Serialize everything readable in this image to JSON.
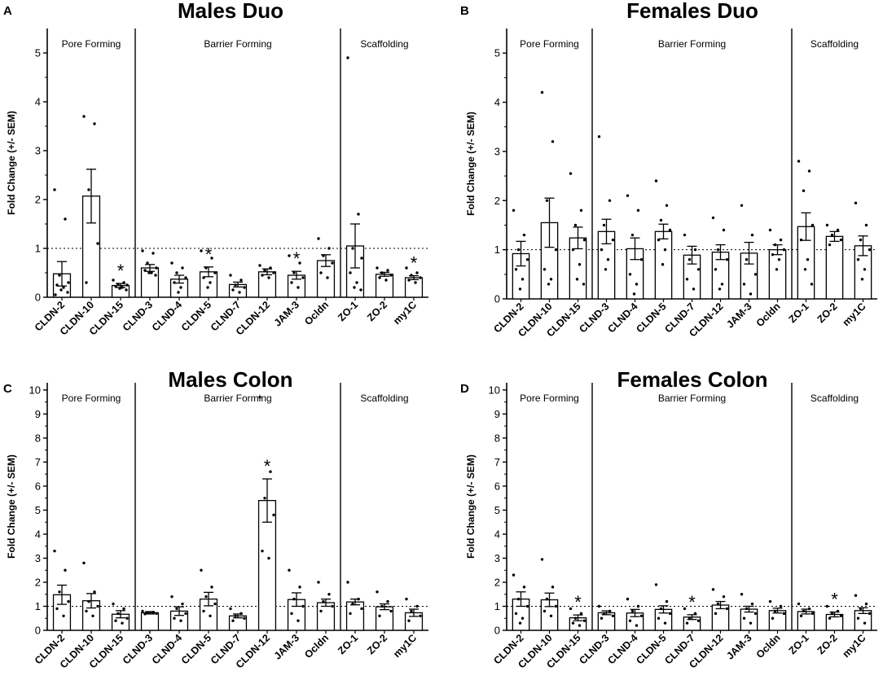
{
  "figure": {
    "ylabel": "Fold Change (+/- SEM)",
    "groups": [
      "Pore Forming",
      "Barrier Forming",
      "Scaffolding"
    ]
  },
  "chart_data": [
    {
      "type": "bar",
      "panel": "A",
      "title": "Males Duo",
      "xlabel": "",
      "ylabel": "Fold Change (+/- SEM)",
      "ylim": [
        0,
        5.5
      ],
      "yticks": [
        "0",
        "1",
        "2",
        "3",
        "4",
        "5"
      ],
      "reference_line": 1,
      "categories": [
        "CLDN-2",
        "CLDN-10",
        "CLDN-15",
        "CLND-3",
        "CLND-4",
        "CLDN-5",
        "CLND-7",
        "CLDN-12",
        "JAM-3",
        "Ocldn",
        "ZO-1",
        "ZO-2",
        "my1C"
      ],
      "values": [
        0.48,
        2.07,
        0.24,
        0.6,
        0.37,
        0.52,
        0.26,
        0.52,
        0.45,
        0.75,
        1.05,
        0.47,
        0.4
      ],
      "sem": [
        0.25,
        0.55,
        0.04,
        0.07,
        0.08,
        0.1,
        0.05,
        0.06,
        0.08,
        0.12,
        0.45,
        0.04,
        0.04
      ],
      "significant": [
        false,
        false,
        true,
        false,
        false,
        true,
        false,
        false,
        true,
        false,
        false,
        false,
        true
      ],
      "points": [
        [
          2.2,
          1.6,
          0.45,
          0.3,
          0.25,
          0.2,
          0.15,
          0.1,
          0.05
        ],
        [
          3.7,
          3.55,
          2.2,
          1.1,
          0.3
        ],
        [
          0.35,
          0.3,
          0.27,
          0.25,
          0.22,
          0.2,
          0.18,
          0.15
        ],
        [
          0.95,
          0.9,
          0.7,
          0.6,
          0.55,
          0.5,
          0.5,
          0.45
        ],
        [
          0.7,
          0.6,
          0.5,
          0.4,
          0.3,
          0.2,
          0.1
        ],
        [
          0.95,
          0.8,
          0.6,
          0.5,
          0.4,
          0.3,
          0.2
        ],
        [
          0.45,
          0.35,
          0.25,
          0.2,
          0.15,
          0.1
        ],
        [
          0.65,
          0.6,
          0.55,
          0.5,
          0.45,
          0.4
        ],
        [
          0.85,
          0.7,
          0.5,
          0.4,
          0.3,
          0.2
        ],
        [
          1.2,
          1.0,
          0.85,
          0.7,
          0.5,
          0.4
        ],
        [
          4.9,
          1.7,
          1.0,
          0.8,
          0.5,
          0.3,
          0.2,
          0.15
        ],
        [
          0.6,
          0.55,
          0.5,
          0.45,
          0.4,
          0.35
        ],
        [
          0.6,
          0.5,
          0.45,
          0.4,
          0.35,
          0.3
        ]
      ]
    },
    {
      "type": "bar",
      "panel": "B",
      "title": "Females Duo",
      "xlabel": "",
      "ylabel": "Fold Change (+/- SEM)",
      "ylim": [
        0,
        5.5
      ],
      "yticks": [
        "0",
        "1",
        "2",
        "3",
        "4",
        "5"
      ],
      "reference_line": 1,
      "categories": [
        "CLDN-2",
        "CLDN-10",
        "CLDN-15",
        "CLND-3",
        "CLND-4",
        "CLDN-5",
        "CLND-7",
        "CLDN-12",
        "JAM-3",
        "Ocldn",
        "ZO-1",
        "ZO-2",
        "my1C"
      ],
      "values": [
        0.92,
        1.55,
        1.24,
        1.37,
        1.02,
        1.37,
        0.89,
        0.95,
        0.93,
        1.0,
        1.47,
        1.27,
        1.08
      ],
      "sem": [
        0.25,
        0.5,
        0.22,
        0.25,
        0.22,
        0.15,
        0.18,
        0.15,
        0.22,
        0.1,
        0.28,
        0.1,
        0.2
      ],
      "significant": [
        false,
        false,
        false,
        false,
        false,
        false,
        false,
        false,
        false,
        false,
        false,
        false,
        false
      ],
      "points": [
        [
          1.8,
          1.3,
          1.0,
          0.8,
          0.6,
          0.4,
          0.2
        ],
        [
          4.2,
          3.2,
          2.0,
          1.0,
          0.6,
          0.4,
          0.3
        ],
        [
          2.55,
          1.8,
          1.5,
          1.2,
          1.0,
          0.7,
          0.4,
          0.3
        ],
        [
          3.3,
          2.0,
          1.5,
          1.2,
          1.0,
          0.8,
          0.6
        ],
        [
          2.1,
          1.8,
          1.3,
          0.8,
          0.5,
          0.3,
          0.1
        ],
        [
          2.4,
          1.9,
          1.6,
          1.4,
          1.2,
          1.0,
          0.7
        ],
        [
          1.3,
          1.0,
          0.8,
          0.6,
          0.4,
          0.2
        ],
        [
          1.65,
          1.4,
          1.0,
          0.8,
          0.6,
          0.3,
          0.2
        ],
        [
          1.9,
          1.3,
          0.8,
          0.5,
          0.3,
          0.1
        ],
        [
          1.4,
          1.2,
          1.1,
          1.0,
          0.9,
          0.8,
          0.6
        ],
        [
          2.8,
          2.6,
          2.2,
          1.5,
          1.2,
          0.8,
          0.6,
          0.3
        ],
        [
          1.5,
          1.4,
          1.3,
          1.2,
          1.1
        ],
        [
          1.95,
          1.5,
          1.2,
          1.0,
          0.8,
          0.6,
          0.4
        ]
      ]
    },
    {
      "type": "bar",
      "panel": "C",
      "title": "Males Colon",
      "xlabel": "",
      "ylabel": "Fold Change (+/- SEM)",
      "ylim": [
        0,
        10.3
      ],
      "yticks": [
        "0",
        "1",
        "2",
        "3",
        "4",
        "5",
        "6",
        "7",
        "8",
        "9",
        "10"
      ],
      "reference_line": 1,
      "categories": [
        "CLDN-2",
        "CLDN-10",
        "CLDN-15",
        "CLND-3",
        "CLND-4",
        "CLDN-5",
        "CLND-7",
        "CLDN-12",
        "JAM-3",
        "Ocldn",
        "ZO-1",
        "ZO-2",
        "my1C"
      ],
      "values": [
        1.48,
        1.23,
        0.67,
        0.73,
        0.8,
        1.3,
        0.6,
        5.4,
        1.28,
        1.15,
        1.18,
        0.98,
        0.73
      ],
      "sem": [
        0.4,
        0.3,
        0.15,
        0.05,
        0.18,
        0.28,
        0.08,
        0.9,
        0.28,
        0.15,
        0.12,
        0.12,
        0.15
      ],
      "significant": [
        false,
        false,
        false,
        false,
        false,
        false,
        false,
        true,
        false,
        false,
        false,
        false,
        false
      ],
      "points": [
        [
          3.3,
          2.5,
          1.6,
          1.2,
          0.9,
          0.6
        ],
        [
          2.8,
          1.6,
          1.2,
          1.0,
          0.8,
          0.6
        ],
        [
          1.1,
          0.9,
          0.7,
          0.5,
          0.4,
          0.3
        ],
        [
          0.8,
          0.75,
          0.72,
          0.7,
          0.68
        ],
        [
          1.4,
          1.1,
          0.9,
          0.7,
          0.5,
          0.4
        ],
        [
          2.5,
          1.8,
          1.4,
          1.1,
          0.8,
          0.6
        ],
        [
          0.9,
          0.7,
          0.6,
          0.5,
          0.4
        ],
        [
          9.7,
          6.6,
          5.5,
          4.8,
          3.3,
          3.0
        ],
        [
          2.5,
          1.8,
          1.3,
          1.0,
          0.7,
          0.4
        ],
        [
          2.0,
          1.5,
          1.2,
          1.0,
          0.8
        ],
        [
          2.0,
          1.3,
          1.1,
          0.9,
          0.7
        ],
        [
          1.6,
          1.2,
          1.0,
          0.8,
          0.6
        ],
        [
          1.3,
          1.0,
          0.8,
          0.6,
          0.4
        ]
      ]
    },
    {
      "type": "bar",
      "panel": "D",
      "title": "Females Colon",
      "xlabel": "",
      "ylabel": "Fold Change (+/- SEM)",
      "ylim": [
        0,
        10.3
      ],
      "yticks": [
        "0",
        "1",
        "2",
        "3",
        "4",
        "5",
        "6",
        "7",
        "8",
        "9",
        "10"
      ],
      "reference_line": 1,
      "categories": [
        "CLDN-2",
        "CLDN-10",
        "CLDN-15",
        "CLND-3",
        "CLND-4",
        "CLDN-5",
        "CLND-7",
        "CLDN-12",
        "JAM-3",
        "Ocldn",
        "ZO-1",
        "ZO-2",
        "my1C"
      ],
      "values": [
        1.3,
        1.27,
        0.52,
        0.73,
        0.72,
        0.87,
        0.55,
        1.05,
        0.88,
        0.82,
        0.78,
        0.66,
        0.82
      ],
      "sem": [
        0.3,
        0.28,
        0.12,
        0.08,
        0.15,
        0.15,
        0.1,
        0.15,
        0.12,
        0.1,
        0.1,
        0.1,
        0.12
      ],
      "significant": [
        false,
        false,
        true,
        false,
        false,
        false,
        true,
        false,
        false,
        false,
        false,
        true,
        false
      ],
      "points": [
        [
          2.3,
          1.8,
          1.3,
          1.0,
          0.7,
          0.5,
          0.3
        ],
        [
          2.95,
          1.8,
          1.3,
          1.0,
          0.8,
          0.6
        ],
        [
          0.9,
          0.7,
          0.5,
          0.4,
          0.3,
          0.2
        ],
        [
          1.0,
          0.8,
          0.7,
          0.6,
          0.5
        ],
        [
          1.3,
          1.0,
          0.8,
          0.6,
          0.4,
          0.2
        ],
        [
          1.9,
          1.2,
          0.9,
          0.7,
          0.5,
          0.3
        ],
        [
          0.9,
          0.7,
          0.5,
          0.4,
          0.3
        ],
        [
          1.7,
          1.4,
          1.1,
          0.9,
          0.7
        ],
        [
          1.5,
          1.1,
          0.9,
          0.7,
          0.5,
          0.3
        ],
        [
          1.2,
          1.0,
          0.8,
          0.7,
          0.5
        ],
        [
          1.1,
          0.9,
          0.8,
          0.7,
          0.6
        ],
        [
          1.0,
          0.8,
          0.7,
          0.6,
          0.5
        ],
        [
          1.45,
          1.1,
          0.9,
          0.7,
          0.5,
          0.3
        ]
      ]
    }
  ],
  "colors": {
    "ink": "#000000",
    "bar_fill": "#ffffff",
    "background": "#ffffff"
  }
}
